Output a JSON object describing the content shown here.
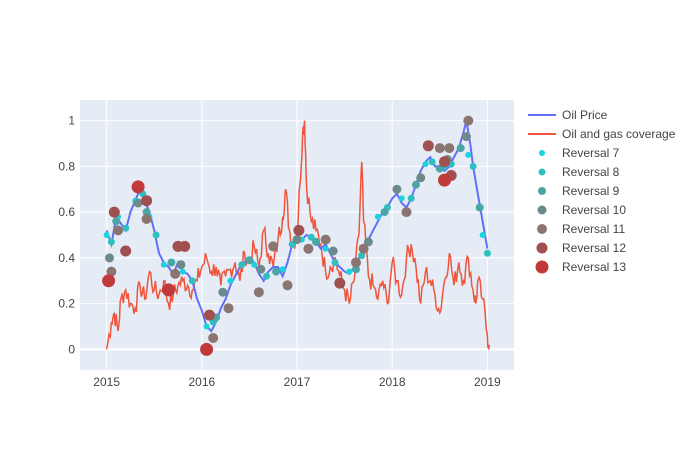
{
  "chart_data": {
    "type": "line",
    "title": "",
    "xlabel": "",
    "ylabel": "",
    "x_range": [
      2014.72,
      2019.28
    ],
    "y_range": [
      -0.09,
      1.09
    ],
    "x_ticks": [
      {
        "value": 2015,
        "label": "2015"
      },
      {
        "value": 2016,
        "label": "2016"
      },
      {
        "value": 2017,
        "label": "2017"
      },
      {
        "value": 2018,
        "label": "2018"
      },
      {
        "value": 2019,
        "label": "2019"
      }
    ],
    "y_ticks": [
      {
        "value": 0,
        "label": "0"
      },
      {
        "value": 0.2,
        "label": "0.2"
      },
      {
        "value": 0.4,
        "label": "0.4"
      },
      {
        "value": 0.6,
        "label": "0.6"
      },
      {
        "value": 0.8,
        "label": "0.8"
      },
      {
        "value": 1,
        "label": "1"
      }
    ],
    "colors": {
      "oil_price": "#636efa",
      "coverage": "#ef553b",
      "plot_bg": "#e5ecf6",
      "grid": "#ffffff"
    },
    "lines": [
      {
        "name": "Oil Price",
        "color": "#636efa",
        "points": [
          [
            2015.0,
            0.52
          ],
          [
            2015.05,
            0.46
          ],
          [
            2015.1,
            0.58
          ],
          [
            2015.15,
            0.55
          ],
          [
            2015.2,
            0.52
          ],
          [
            2015.25,
            0.6
          ],
          [
            2015.3,
            0.65
          ],
          [
            2015.35,
            0.7
          ],
          [
            2015.4,
            0.65
          ],
          [
            2015.45,
            0.6
          ],
          [
            2015.5,
            0.52
          ],
          [
            2015.55,
            0.42
          ],
          [
            2015.6,
            0.38
          ],
          [
            2015.65,
            0.36
          ],
          [
            2015.7,
            0.33
          ],
          [
            2015.75,
            0.38
          ],
          [
            2015.8,
            0.34
          ],
          [
            2015.85,
            0.33
          ],
          [
            2015.9,
            0.3
          ],
          [
            2015.95,
            0.22
          ],
          [
            2016.0,
            0.17
          ],
          [
            2016.05,
            0.1
          ],
          [
            2016.1,
            0.08
          ],
          [
            2016.15,
            0.12
          ],
          [
            2016.2,
            0.18
          ],
          [
            2016.25,
            0.22
          ],
          [
            2016.3,
            0.28
          ],
          [
            2016.35,
            0.32
          ],
          [
            2016.4,
            0.36
          ],
          [
            2016.45,
            0.38
          ],
          [
            2016.5,
            0.4
          ],
          [
            2016.55,
            0.38
          ],
          [
            2016.6,
            0.33
          ],
          [
            2016.65,
            0.3
          ],
          [
            2016.7,
            0.34
          ],
          [
            2016.75,
            0.36
          ],
          [
            2016.8,
            0.36
          ],
          [
            2016.85,
            0.32
          ],
          [
            2016.9,
            0.38
          ],
          [
            2016.95,
            0.46
          ],
          [
            2017.0,
            0.5
          ],
          [
            2017.05,
            0.48
          ],
          [
            2017.1,
            0.5
          ],
          [
            2017.15,
            0.49
          ],
          [
            2017.2,
            0.47
          ],
          [
            2017.25,
            0.44
          ],
          [
            2017.3,
            0.46
          ],
          [
            2017.35,
            0.42
          ],
          [
            2017.4,
            0.38
          ],
          [
            2017.45,
            0.36
          ],
          [
            2017.5,
            0.34
          ],
          [
            2017.55,
            0.33
          ],
          [
            2017.6,
            0.36
          ],
          [
            2017.65,
            0.4
          ],
          [
            2017.7,
            0.42
          ],
          [
            2017.75,
            0.48
          ],
          [
            2017.8,
            0.52
          ],
          [
            2017.85,
            0.56
          ],
          [
            2017.9,
            0.6
          ],
          [
            2017.95,
            0.62
          ],
          [
            2018.0,
            0.66
          ],
          [
            2018.05,
            0.68
          ],
          [
            2018.1,
            0.64
          ],
          [
            2018.15,
            0.62
          ],
          [
            2018.2,
            0.66
          ],
          [
            2018.25,
            0.72
          ],
          [
            2018.3,
            0.78
          ],
          [
            2018.35,
            0.82
          ],
          [
            2018.4,
            0.84
          ],
          [
            2018.45,
            0.8
          ],
          [
            2018.5,
            0.8
          ],
          [
            2018.55,
            0.78
          ],
          [
            2018.6,
            0.8
          ],
          [
            2018.65,
            0.84
          ],
          [
            2018.7,
            0.88
          ],
          [
            2018.75,
            0.95
          ],
          [
            2018.78,
            1.0
          ],
          [
            2018.82,
            0.9
          ],
          [
            2018.85,
            0.8
          ],
          [
            2018.9,
            0.68
          ],
          [
            2018.95,
            0.56
          ],
          [
            2019.0,
            0.44
          ]
        ]
      }
    ],
    "coverage_anchors": [
      [
        2015.0,
        0.0
      ],
      [
        2015.05,
        0.12
      ],
      [
        2015.08,
        0.16
      ],
      [
        2015.12,
        0.08
      ],
      [
        2015.15,
        0.22
      ],
      [
        2015.2,
        0.26
      ],
      [
        2015.25,
        0.2
      ],
      [
        2015.3,
        0.18
      ],
      [
        2015.35,
        0.28
      ],
      [
        2015.4,
        0.22
      ],
      [
        2015.45,
        0.34
      ],
      [
        2015.5,
        0.26
      ],
      [
        2015.55,
        0.24
      ],
      [
        2015.6,
        0.3
      ],
      [
        2015.65,
        0.2
      ],
      [
        2015.7,
        0.24
      ],
      [
        2015.75,
        0.28
      ],
      [
        2015.8,
        0.3
      ],
      [
        2015.85,
        0.28
      ],
      [
        2015.9,
        0.26
      ],
      [
        2015.95,
        0.3
      ],
      [
        2016.0,
        0.36
      ],
      [
        2016.05,
        0.4
      ],
      [
        2016.1,
        0.34
      ],
      [
        2016.15,
        0.36
      ],
      [
        2016.2,
        0.28
      ],
      [
        2016.25,
        0.32
      ],
      [
        2016.3,
        0.35
      ],
      [
        2016.35,
        0.38
      ],
      [
        2016.4,
        0.3
      ],
      [
        2016.45,
        0.42
      ],
      [
        2016.5,
        0.38
      ],
      [
        2016.55,
        0.45
      ],
      [
        2016.6,
        0.36
      ],
      [
        2016.65,
        0.52
      ],
      [
        2016.7,
        0.42
      ],
      [
        2016.75,
        0.36
      ],
      [
        2016.8,
        0.48
      ],
      [
        2016.85,
        0.58
      ],
      [
        2016.88,
        0.7
      ],
      [
        2016.92,
        0.52
      ],
      [
        2016.95,
        0.46
      ],
      [
        2017.0,
        0.5
      ],
      [
        2017.03,
        0.72
      ],
      [
        2017.06,
        0.95
      ],
      [
        2017.08,
        1.0
      ],
      [
        2017.1,
        0.72
      ],
      [
        2017.15,
        0.56
      ],
      [
        2017.2,
        0.52
      ],
      [
        2017.25,
        0.46
      ],
      [
        2017.3,
        0.34
      ],
      [
        2017.35,
        0.36
      ],
      [
        2017.4,
        0.4
      ],
      [
        2017.45,
        0.32
      ],
      [
        2017.5,
        0.26
      ],
      [
        2017.55,
        0.2
      ],
      [
        2017.6,
        0.3
      ],
      [
        2017.65,
        0.5
      ],
      [
        2017.68,
        0.82
      ],
      [
        2017.7,
        0.56
      ],
      [
        2017.75,
        0.32
      ],
      [
        2017.8,
        0.28
      ],
      [
        2017.85,
        0.22
      ],
      [
        2017.9,
        0.3
      ],
      [
        2017.95,
        0.2
      ],
      [
        2018.0,
        0.38
      ],
      [
        2018.05,
        0.3
      ],
      [
        2018.1,
        0.24
      ],
      [
        2018.15,
        0.4
      ],
      [
        2018.2,
        0.46
      ],
      [
        2018.25,
        0.36
      ],
      [
        2018.3,
        0.2
      ],
      [
        2018.35,
        0.34
      ],
      [
        2018.4,
        0.3
      ],
      [
        2018.45,
        0.24
      ],
      [
        2018.5,
        0.16
      ],
      [
        2018.55,
        0.3
      ],
      [
        2018.6,
        0.42
      ],
      [
        2018.65,
        0.28
      ],
      [
        2018.7,
        0.38
      ],
      [
        2018.75,
        0.3
      ],
      [
        2018.8,
        0.4
      ],
      [
        2018.85,
        0.26
      ],
      [
        2018.88,
        0.2
      ],
      [
        2018.9,
        0.3
      ],
      [
        2018.95,
        0.22
      ],
      [
        2019.0,
        0.06
      ],
      [
        2019.02,
        0.02
      ]
    ],
    "series": [
      {
        "name": "Oil Price",
        "kind": "line",
        "color": "#636efa"
      },
      {
        "name": "Oil and gas coverage",
        "kind": "line",
        "color": "#ef553b"
      },
      {
        "name": "Reversal 7",
        "kind": "markers",
        "color": "#19d3e0",
        "size": 3,
        "x": [
          2015.0,
          2015.12,
          2015.3,
          2015.45,
          2015.6,
          2015.8,
          2016.05,
          2016.3,
          2016.55,
          2016.85,
          2017.05,
          2017.3,
          2017.55,
          2017.85,
          2018.1,
          2018.35,
          2018.55,
          2018.8,
          2018.95
        ],
        "y": [
          0.5,
          0.58,
          0.65,
          0.58,
          0.37,
          0.34,
          0.1,
          0.3,
          0.37,
          0.35,
          0.48,
          0.44,
          0.34,
          0.58,
          0.66,
          0.81,
          0.8,
          0.85,
          0.5
        ]
      },
      {
        "name": "Reversal 8",
        "kind": "markers",
        "color": "#2ebfbf",
        "size": 3.5,
        "x": [
          2015.05,
          2015.2,
          2015.38,
          2015.52,
          2015.72,
          2015.9,
          2016.12,
          2016.42,
          2016.68,
          2016.95,
          2017.15,
          2017.4,
          2017.68,
          2017.95,
          2018.2,
          2018.42,
          2018.62,
          2018.85,
          2019.0
        ],
        "y": [
          0.47,
          0.53,
          0.68,
          0.5,
          0.33,
          0.3,
          0.12,
          0.37,
          0.32,
          0.46,
          0.49,
          0.38,
          0.41,
          0.62,
          0.66,
          0.82,
          0.81,
          0.8,
          0.42
        ]
      },
      {
        "name": "Reversal 9",
        "kind": "markers",
        "color": "#4aa5a5",
        "size": 4,
        "x": [
          2015.1,
          2015.42,
          2015.68,
          2016.15,
          2016.5,
          2016.78,
          2017.2,
          2017.62,
          2017.92,
          2018.25,
          2018.5,
          2018.72,
          2018.92
        ],
        "y": [
          0.56,
          0.6,
          0.38,
          0.14,
          0.39,
          0.34,
          0.47,
          0.35,
          0.6,
          0.72,
          0.79,
          0.88,
          0.62
        ]
      },
      {
        "name": "Reversal 10",
        "kind": "markers",
        "color": "#6c8a8a",
        "size": 4.5,
        "x": [
          2015.03,
          2015.33,
          2015.78,
          2016.22,
          2016.62,
          2017.0,
          2017.38,
          2017.75,
          2018.05,
          2018.3,
          2018.58,
          2018.78
        ],
        "y": [
          0.4,
          0.64,
          0.37,
          0.25,
          0.35,
          0.48,
          0.43,
          0.47,
          0.7,
          0.75,
          0.83,
          0.93
        ]
      },
      {
        "name": "Reversal 11",
        "kind": "markers",
        "color": "#8a7570",
        "size": 5,
        "x": [
          2015.05,
          2015.12,
          2015.42,
          2015.72,
          2016.12,
          2016.28,
          2016.6,
          2016.75,
          2016.9,
          2017.12,
          2017.3,
          2017.62,
          2017.7,
          2018.15,
          2018.5,
          2018.6,
          2018.8
        ],
        "y": [
          0.34,
          0.52,
          0.57,
          0.33,
          0.05,
          0.18,
          0.25,
          0.45,
          0.28,
          0.44,
          0.48,
          0.38,
          0.44,
          0.6,
          0.88,
          0.88,
          1.0
        ]
      },
      {
        "name": "Reversal 12",
        "kind": "markers",
        "color": "#a05050",
        "size": 5.5,
        "x": [
          2015.08,
          2015.2,
          2015.42,
          2015.75,
          2015.82,
          2016.08,
          2017.02,
          2017.45,
          2018.38,
          2018.55,
          2018.62
        ],
        "y": [
          0.6,
          0.43,
          0.65,
          0.45,
          0.45,
          0.15,
          0.52,
          0.29,
          0.89,
          0.82,
          0.76
        ]
      },
      {
        "name": "Reversal 13",
        "kind": "markers",
        "color": "#c03a3a",
        "size": 6.5,
        "x": [
          2015.02,
          2015.33,
          2015.65,
          2016.05,
          2018.55
        ],
        "y": [
          0.3,
          0.71,
          0.26,
          0.0,
          0.74
        ]
      }
    ],
    "legend": {
      "position": "top-right",
      "entries": [
        {
          "name": "Oil Price",
          "kind": "line",
          "color": "#636efa"
        },
        {
          "name": "Oil and gas coverage",
          "kind": "line",
          "color": "#ef553b"
        },
        {
          "name": "Reversal 7",
          "kind": "marker",
          "color": "#19d3e0",
          "size": 3
        },
        {
          "name": "Reversal 8",
          "kind": "marker",
          "color": "#2ebfbf",
          "size": 3.5
        },
        {
          "name": "Reversal 9",
          "kind": "marker",
          "color": "#4aa5a5",
          "size": 4
        },
        {
          "name": "Reversal 10",
          "kind": "marker",
          "color": "#6c8a8a",
          "size": 4.5
        },
        {
          "name": "Reversal 11",
          "kind": "marker",
          "color": "#8a7570",
          "size": 5
        },
        {
          "name": "Reversal 12",
          "kind": "marker",
          "color": "#a05050",
          "size": 5.5
        },
        {
          "name": "Reversal 13",
          "kind": "marker",
          "color": "#c03a3a",
          "size": 6.5
        }
      ]
    }
  }
}
